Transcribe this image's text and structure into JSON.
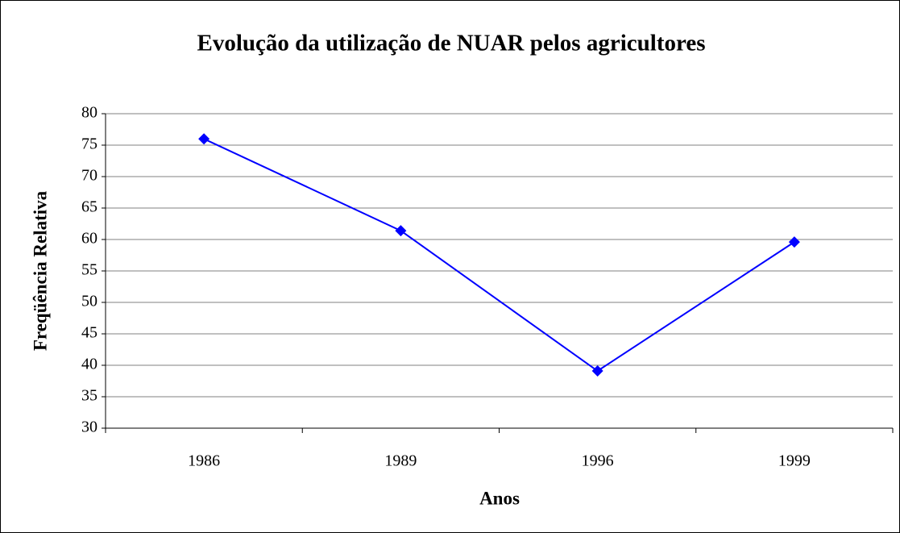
{
  "chart_data": {
    "type": "line",
    "title": "Evolução da utilização de NUAR pelos agricultores",
    "x_label": "Anos",
    "y_label": "Freqüência Relativa",
    "categories": [
      "1986",
      "1989",
      "1996",
      "1999"
    ],
    "values": [
      76,
      61.4,
      39.1,
      59.6
    ],
    "color": "#0000ff",
    "ylim": [
      30,
      80
    ],
    "yticks": [
      30,
      35,
      40,
      45,
      50,
      55,
      60,
      65,
      70,
      75,
      80
    ],
    "grid": true
  }
}
